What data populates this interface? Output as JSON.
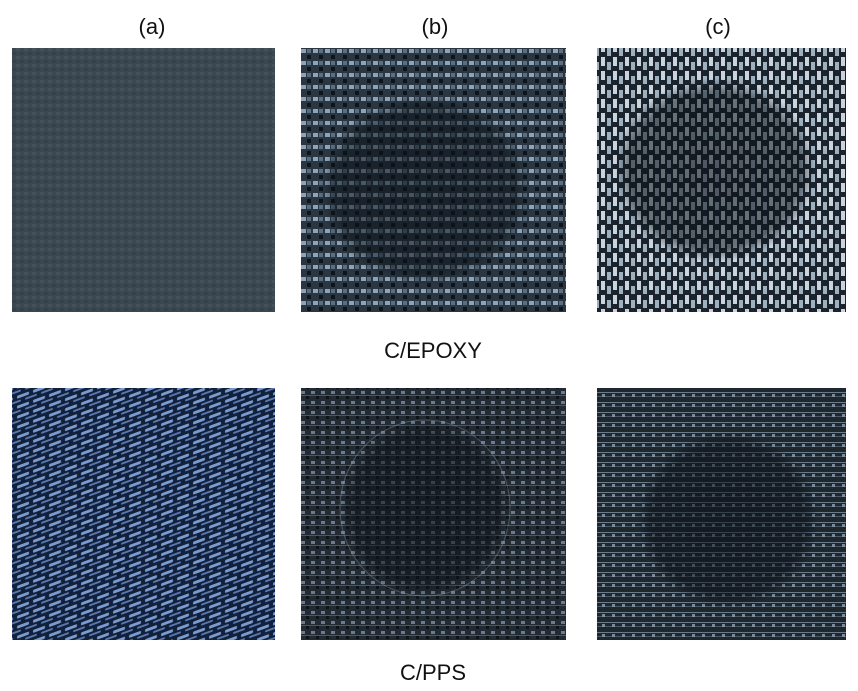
{
  "panel_labels": [
    "(a)",
    "(b)",
    "(c)"
  ],
  "row_labels": [
    "C/EPOXY",
    "C/PPS"
  ]
}
